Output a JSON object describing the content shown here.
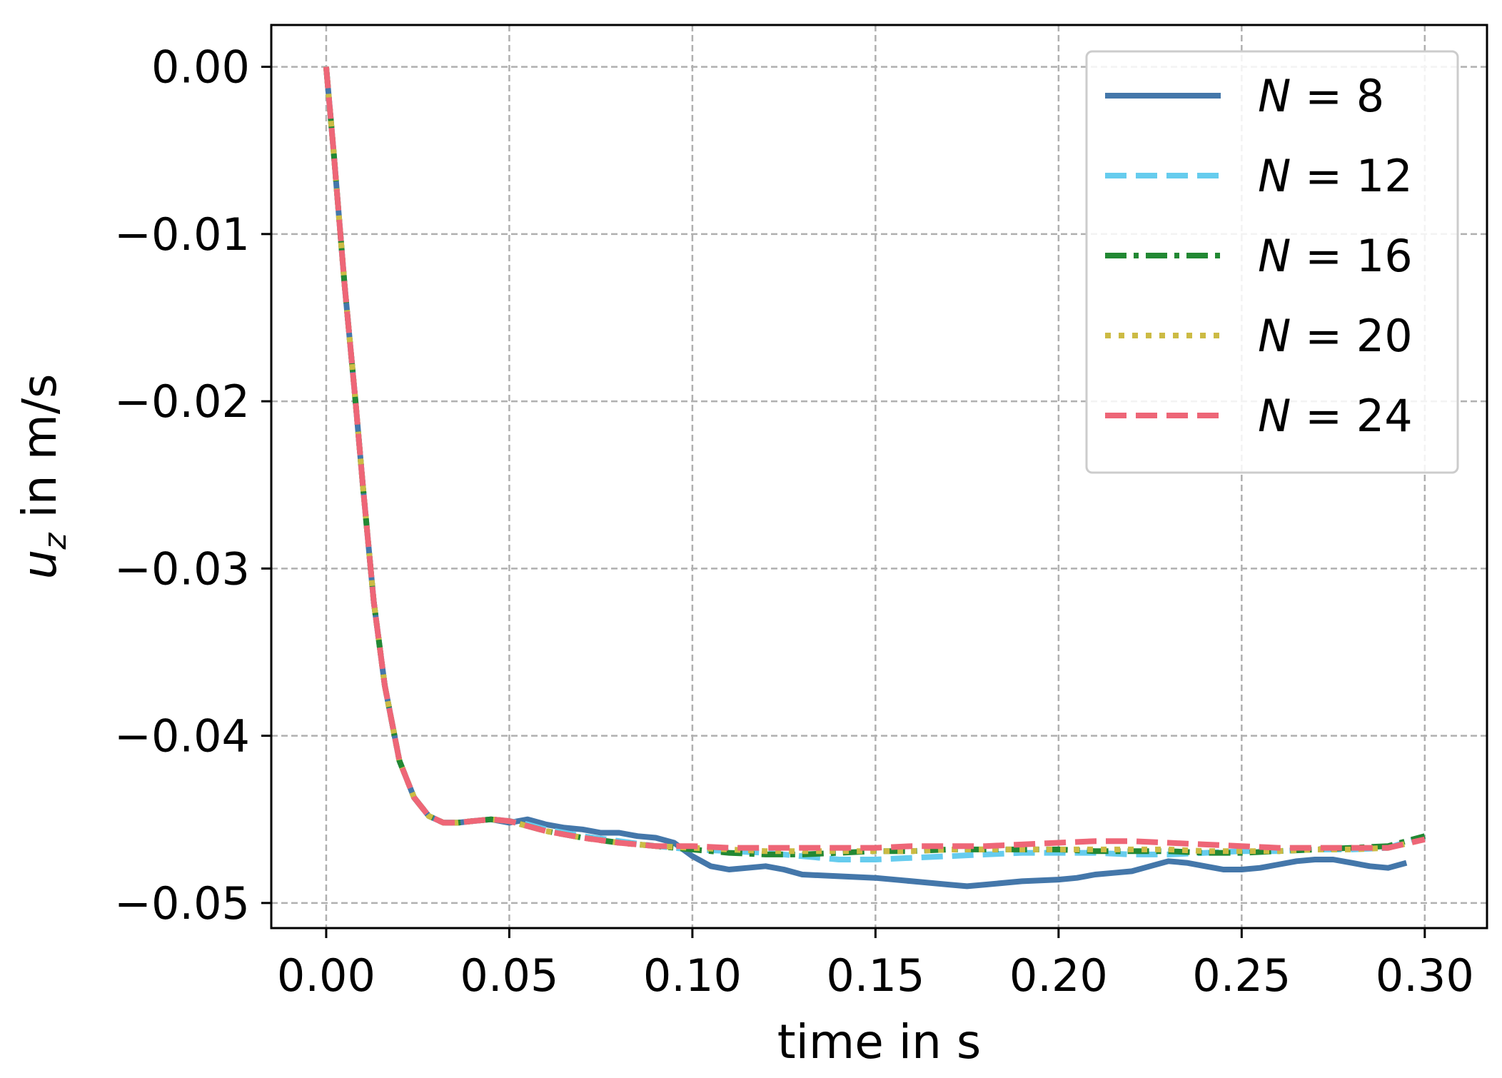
{
  "chart_data": {
    "type": "line",
    "title": "",
    "xlabel": "time in s",
    "ylabel_var": "u",
    "ylabel_sub": "z",
    "ylabel_rest": " in m/s",
    "xlim": [
      -0.015,
      0.317
    ],
    "ylim": [
      -0.0515,
      0.0025
    ],
    "xticks": [
      0.0,
      0.05,
      0.1,
      0.15,
      0.2,
      0.25,
      0.3
    ],
    "xtick_labels": [
      "0.00",
      "0.05",
      "0.10",
      "0.15",
      "0.20",
      "0.25",
      "0.30"
    ],
    "yticks": [
      0.0,
      -0.01,
      -0.02,
      -0.03,
      -0.04,
      -0.05
    ],
    "ytick_labels": [
      "0.00",
      "−0.01",
      "−0.02",
      "−0.03",
      "−0.04",
      "−0.05"
    ],
    "grid": true,
    "legend_position": "top-right",
    "legend_prefix": "N",
    "legend_eq": " = ",
    "series": [
      {
        "name": "8",
        "color": "#4477AA",
        "dash": "solid",
        "x": [
          0.0,
          0.002,
          0.005,
          0.008,
          0.01,
          0.013,
          0.016,
          0.02,
          0.024,
          0.028,
          0.032,
          0.036,
          0.04,
          0.045,
          0.05,
          0.055,
          0.06,
          0.065,
          0.07,
          0.075,
          0.08,
          0.085,
          0.09,
          0.095,
          0.1,
          0.105,
          0.11,
          0.115,
          0.12,
          0.125,
          0.13,
          0.14,
          0.15,
          0.16,
          0.17,
          0.175,
          0.18,
          0.19,
          0.2,
          0.205,
          0.21,
          0.215,
          0.22,
          0.225,
          0.23,
          0.235,
          0.24,
          0.245,
          0.25,
          0.255,
          0.26,
          0.265,
          0.27,
          0.275,
          0.28,
          0.285,
          0.29,
          0.295
        ],
        "y": [
          0.0,
          -0.005,
          -0.013,
          -0.02,
          -0.025,
          -0.032,
          -0.037,
          -0.0415,
          -0.0437,
          -0.0448,
          -0.0452,
          -0.0452,
          -0.0451,
          -0.045,
          -0.0452,
          -0.045,
          -0.0453,
          -0.0455,
          -0.0456,
          -0.0458,
          -0.0458,
          -0.046,
          -0.0461,
          -0.0464,
          -0.0472,
          -0.0478,
          -0.048,
          -0.0479,
          -0.0478,
          -0.048,
          -0.0483,
          -0.0484,
          -0.0485,
          -0.0487,
          -0.0489,
          -0.049,
          -0.0489,
          -0.0487,
          -0.0486,
          -0.0485,
          -0.0483,
          -0.0482,
          -0.0481,
          -0.0478,
          -0.0475,
          -0.0476,
          -0.0478,
          -0.048,
          -0.048,
          -0.0479,
          -0.0477,
          -0.0475,
          -0.0474,
          -0.0474,
          -0.0476,
          -0.0478,
          -0.0479,
          -0.0476
        ]
      },
      {
        "name": "12",
        "color": "#66CCEE",
        "dash": "dashed",
        "x": [
          0.0,
          0.002,
          0.005,
          0.008,
          0.01,
          0.013,
          0.016,
          0.02,
          0.024,
          0.028,
          0.032,
          0.036,
          0.04,
          0.045,
          0.05,
          0.055,
          0.06,
          0.07,
          0.08,
          0.09,
          0.1,
          0.11,
          0.12,
          0.13,
          0.14,
          0.15,
          0.16,
          0.17,
          0.18,
          0.19,
          0.2,
          0.21,
          0.22,
          0.23,
          0.24,
          0.25,
          0.26,
          0.27,
          0.28,
          0.29,
          0.3
        ],
        "y": [
          0.0,
          -0.005,
          -0.013,
          -0.02,
          -0.025,
          -0.032,
          -0.037,
          -0.0415,
          -0.0437,
          -0.0448,
          -0.0452,
          -0.0452,
          -0.0451,
          -0.045,
          -0.0451,
          -0.0453,
          -0.0456,
          -0.046,
          -0.0463,
          -0.0466,
          -0.0468,
          -0.0469,
          -0.047,
          -0.0472,
          -0.0474,
          -0.0474,
          -0.0473,
          -0.0472,
          -0.0471,
          -0.047,
          -0.047,
          -0.047,
          -0.0471,
          -0.0471,
          -0.047,
          -0.0469,
          -0.0469,
          -0.0468,
          -0.0468,
          -0.0467,
          -0.046
        ]
      },
      {
        "name": "16",
        "color": "#228833",
        "dash": "dashdot",
        "x": [
          0.0,
          0.002,
          0.005,
          0.008,
          0.01,
          0.013,
          0.016,
          0.02,
          0.024,
          0.028,
          0.032,
          0.036,
          0.04,
          0.045,
          0.05,
          0.055,
          0.06,
          0.07,
          0.08,
          0.09,
          0.1,
          0.11,
          0.12,
          0.13,
          0.14,
          0.15,
          0.16,
          0.17,
          0.18,
          0.19,
          0.2,
          0.21,
          0.22,
          0.23,
          0.24,
          0.25,
          0.26,
          0.27,
          0.28,
          0.29,
          0.3
        ],
        "y": [
          0.0,
          -0.005,
          -0.013,
          -0.02,
          -0.025,
          -0.032,
          -0.037,
          -0.0415,
          -0.0437,
          -0.0448,
          -0.0452,
          -0.0452,
          -0.0451,
          -0.045,
          -0.0451,
          -0.0454,
          -0.0457,
          -0.0461,
          -0.0464,
          -0.0466,
          -0.0468,
          -0.047,
          -0.0471,
          -0.0471,
          -0.047,
          -0.0469,
          -0.0469,
          -0.0468,
          -0.0468,
          -0.0468,
          -0.0468,
          -0.0469,
          -0.0469,
          -0.0469,
          -0.047,
          -0.047,
          -0.0469,
          -0.0468,
          -0.0467,
          -0.0466,
          -0.046
        ]
      },
      {
        "name": "20",
        "color": "#CCBB44",
        "dash": "dotted",
        "x": [
          0.0,
          0.002,
          0.005,
          0.008,
          0.01,
          0.013,
          0.016,
          0.02,
          0.024,
          0.028,
          0.032,
          0.036,
          0.04,
          0.045,
          0.05,
          0.055,
          0.06,
          0.07,
          0.08,
          0.09,
          0.1,
          0.11,
          0.12,
          0.13,
          0.14,
          0.15,
          0.16,
          0.17,
          0.18,
          0.19,
          0.2,
          0.21,
          0.22,
          0.23,
          0.24,
          0.25,
          0.26,
          0.27,
          0.28,
          0.29,
          0.3
        ],
        "y": [
          0.0,
          -0.005,
          -0.013,
          -0.02,
          -0.025,
          -0.032,
          -0.037,
          -0.0415,
          -0.0437,
          -0.0448,
          -0.0452,
          -0.0452,
          -0.0451,
          -0.045,
          -0.0451,
          -0.0454,
          -0.0457,
          -0.0461,
          -0.0464,
          -0.0466,
          -0.0467,
          -0.0468,
          -0.0469,
          -0.0469,
          -0.0469,
          -0.0469,
          -0.0469,
          -0.0468,
          -0.0468,
          -0.0468,
          -0.0468,
          -0.0468,
          -0.0468,
          -0.0468,
          -0.0469,
          -0.0469,
          -0.0469,
          -0.0468,
          -0.0468,
          -0.0467,
          -0.0462
        ]
      },
      {
        "name": "24",
        "color": "#EE6677",
        "dash": "dashed",
        "x": [
          0.0,
          0.002,
          0.005,
          0.008,
          0.01,
          0.013,
          0.016,
          0.02,
          0.024,
          0.028,
          0.032,
          0.036,
          0.04,
          0.045,
          0.05,
          0.055,
          0.06,
          0.07,
          0.08,
          0.09,
          0.1,
          0.11,
          0.12,
          0.13,
          0.14,
          0.15,
          0.16,
          0.17,
          0.18,
          0.19,
          0.2,
          0.21,
          0.22,
          0.23,
          0.24,
          0.25,
          0.26,
          0.27,
          0.28,
          0.29,
          0.3
        ],
        "y": [
          0.0,
          -0.005,
          -0.013,
          -0.02,
          -0.025,
          -0.032,
          -0.037,
          -0.0415,
          -0.0437,
          -0.0448,
          -0.0452,
          -0.0452,
          -0.0451,
          -0.045,
          -0.0451,
          -0.0454,
          -0.0457,
          -0.0461,
          -0.0464,
          -0.0466,
          -0.0466,
          -0.0467,
          -0.0467,
          -0.0467,
          -0.0467,
          -0.0467,
          -0.0466,
          -0.0466,
          -0.0466,
          -0.0465,
          -0.0464,
          -0.0463,
          -0.0463,
          -0.0464,
          -0.0465,
          -0.0466,
          -0.0467,
          -0.0467,
          -0.0467,
          -0.0467,
          -0.0462
        ]
      }
    ]
  }
}
